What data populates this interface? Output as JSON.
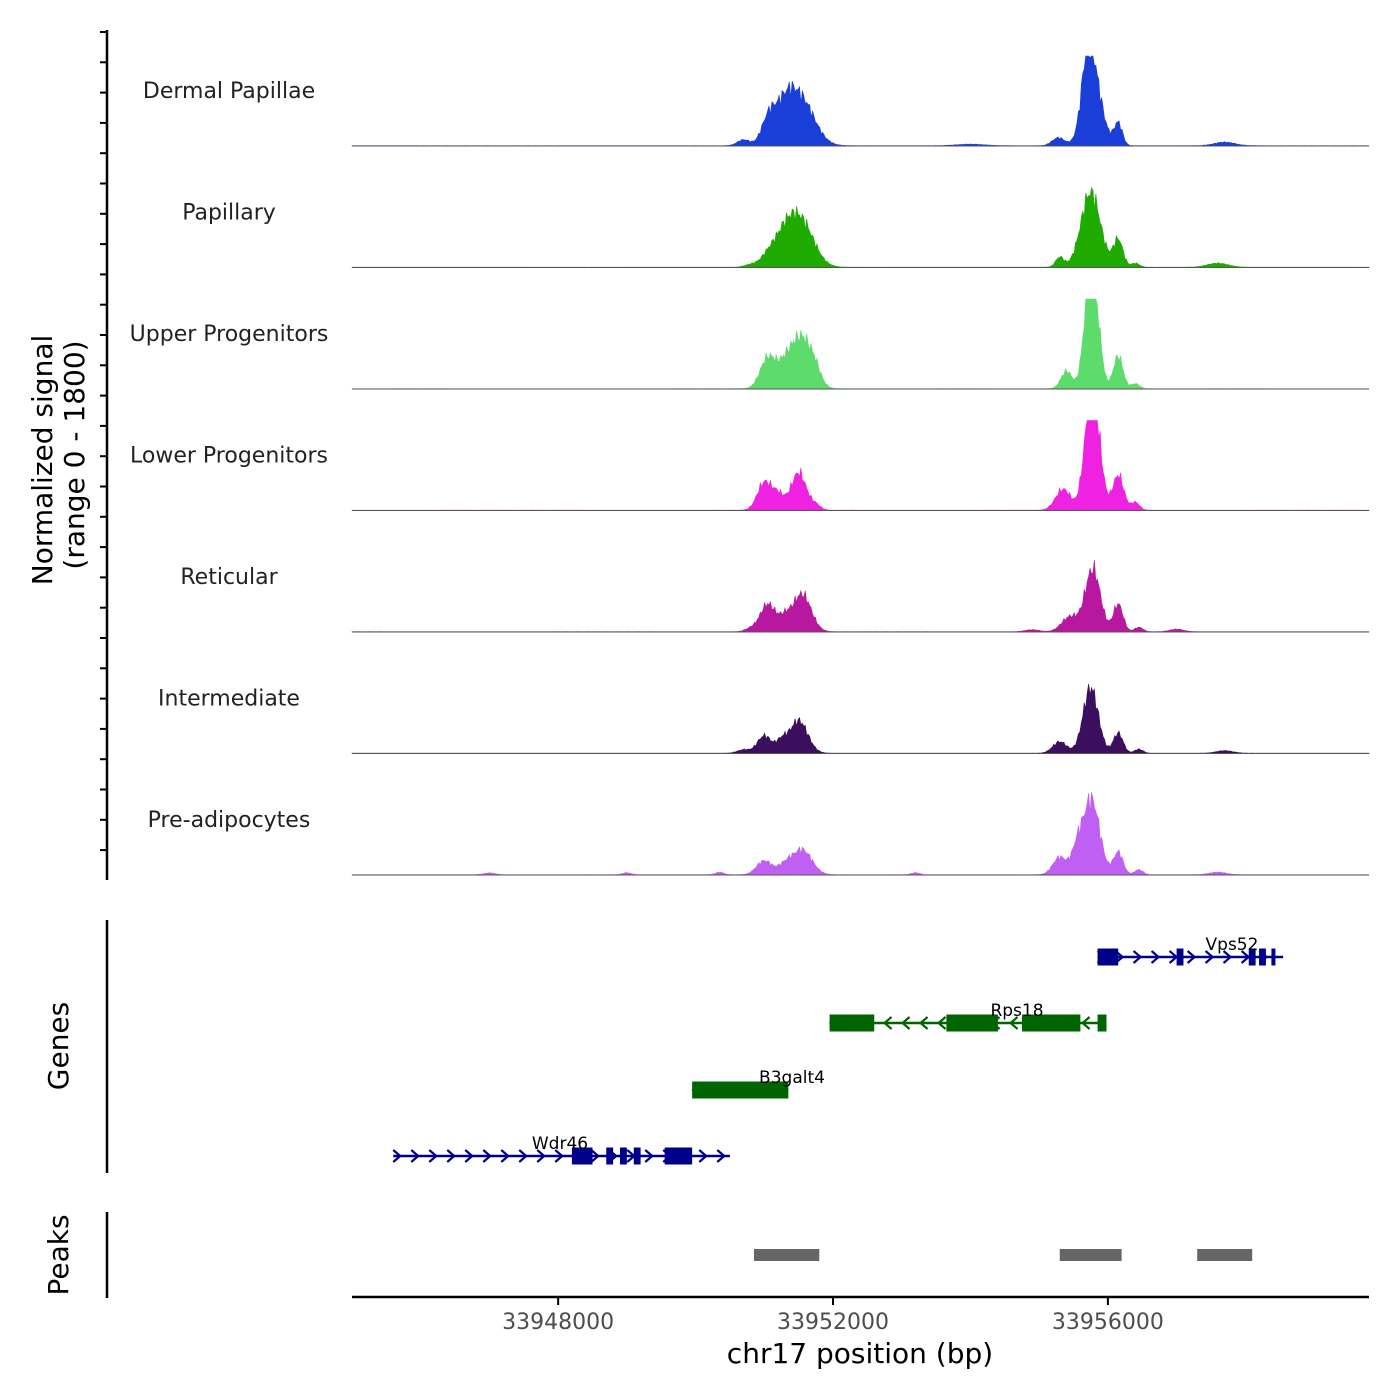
{
  "chart_data": {
    "type": "area",
    "title": "",
    "ylabel": "Normalized signal",
    "ylabel_range": "(range 0 - 1800)",
    "ylim": [
      0,
      1800
    ],
    "xlabel": "chr17 position (bp)",
    "xlim": [
      33945000,
      33959800
    ],
    "xticks": [
      33948000,
      33952000,
      33956000
    ],
    "xtick_labels": [
      "33948000",
      "33952000",
      "33956000"
    ],
    "signal_peaks_note": "approximate coverage bumps (center bp, width bp, height 0-1800)",
    "series": [
      {
        "name": "Dermal Papillae",
        "color": "#1a3fd9",
        "peaks": [
          [
            33951050,
            100,
            420
          ],
          [
            33951150,
            110,
            250
          ],
          [
            33951520,
            200,
            950
          ],
          [
            33951320,
            120,
            450
          ],
          [
            33950700,
            90,
            120
          ],
          [
            33955280,
            90,
            160
          ],
          [
            33955780,
            130,
            1400
          ],
          [
            33955700,
            80,
            900
          ],
          [
            33956150,
            60,
            450
          ],
          [
            33957700,
            150,
            70
          ],
          [
            33954000,
            200,
            30
          ]
        ]
      },
      {
        "name": "Papillary",
        "color": "#1faa00",
        "peaks": [
          [
            33951050,
            110,
            180
          ],
          [
            33951300,
            160,
            600
          ],
          [
            33951550,
            180,
            820
          ],
          [
            33950800,
            90,
            50
          ],
          [
            33955300,
            60,
            200
          ],
          [
            33955750,
            140,
            1500
          ],
          [
            33956150,
            70,
            550
          ],
          [
            33957600,
            150,
            80
          ],
          [
            33956400,
            60,
            80
          ]
        ]
      },
      {
        "name": "Upper Progenitors",
        "color": "#5ddc6d",
        "peaks": [
          [
            33951050,
            110,
            600
          ],
          [
            33951300,
            120,
            400
          ],
          [
            33951550,
            150,
            1000
          ],
          [
            33951750,
            80,
            180
          ],
          [
            33955400,
            80,
            350
          ],
          [
            33955720,
            80,
            1650
          ],
          [
            33955820,
            80,
            1300
          ],
          [
            33956150,
            70,
            650
          ],
          [
            33956400,
            60,
            100
          ]
        ]
      },
      {
        "name": "Lower Progenitors",
        "color": "#ee22e0",
        "peaks": [
          [
            33951000,
            100,
            550
          ],
          [
            33951200,
            90,
            300
          ],
          [
            33951500,
            110,
            750
          ],
          [
            33951750,
            70,
            100
          ],
          [
            33955350,
            110,
            420
          ],
          [
            33955730,
            90,
            1550
          ],
          [
            33955830,
            90,
            1250
          ],
          [
            33956150,
            80,
            700
          ],
          [
            33956400,
            60,
            160
          ]
        ]
      },
      {
        "name": "Reticular",
        "color": "#b8179f",
        "peaks": [
          [
            33951050,
            110,
            550
          ],
          [
            33951300,
            90,
            250
          ],
          [
            33951550,
            130,
            750
          ],
          [
            33950800,
            80,
            60
          ],
          [
            33955450,
            120,
            300
          ],
          [
            33955780,
            110,
            1250
          ],
          [
            33956150,
            70,
            550
          ],
          [
            33956450,
            60,
            90
          ],
          [
            33954900,
            100,
            40
          ],
          [
            33957000,
            100,
            50
          ]
        ]
      },
      {
        "name": "Intermediate",
        "color": "#3b0f5e",
        "peaks": [
          [
            33950700,
            90,
            70
          ],
          [
            33951000,
            100,
            350
          ],
          [
            33951250,
            80,
            220
          ],
          [
            33951500,
            130,
            650
          ],
          [
            33955300,
            100,
            230
          ],
          [
            33955750,
            110,
            1300
          ],
          [
            33956150,
            70,
            400
          ],
          [
            33956450,
            60,
            80
          ],
          [
            33957700,
            120,
            50
          ]
        ]
      },
      {
        "name": "Pre-adipocytes",
        "color": "#c060f3",
        "peaks": [
          [
            33951000,
            110,
            280
          ],
          [
            33951300,
            100,
            180
          ],
          [
            33951550,
            140,
            500
          ],
          [
            33950350,
            60,
            50
          ],
          [
            33949000,
            60,
            40
          ],
          [
            33947000,
            80,
            35
          ],
          [
            33955300,
            100,
            350
          ],
          [
            33955550,
            80,
            450
          ],
          [
            33955760,
            120,
            1500
          ],
          [
            33956150,
            70,
            450
          ],
          [
            33956450,
            60,
            100
          ],
          [
            33957600,
            120,
            50
          ],
          [
            33953200,
            60,
            40
          ]
        ]
      }
    ],
    "genes": [
      {
        "name": "Vps52",
        "strand": "+",
        "color": "#00008b",
        "start": 33955850,
        "end": 33958550,
        "row": 1,
        "exons": [
          [
            33955850,
            33956150
          ],
          [
            33957000,
            33957100
          ],
          [
            33958050,
            33958150
          ],
          [
            33958200,
            33958300
          ],
          [
            33958380,
            33958420
          ]
        ]
      },
      {
        "name": "Rps18",
        "strand": "-",
        "color": "#006400",
        "start": 33951950,
        "end": 33955980,
        "row": 2,
        "exons": [
          [
            33951950,
            33952600
          ],
          [
            33953650,
            33954400
          ],
          [
            33954750,
            33955600
          ],
          [
            33955850,
            33955980
          ]
        ]
      },
      {
        "name": "B3galt4",
        "strand": "-",
        "color": "#006400",
        "start": 33949950,
        "end": 33951350,
        "row": 3,
        "exons": [
          [
            33949950,
            33951350
          ]
        ]
      },
      {
        "name": "Wdr46",
        "strand": "+",
        "color": "#00008b",
        "start": 33945600,
        "end": 33950500,
        "row": 4,
        "exons": [
          [
            33948200,
            33948500
          ],
          [
            33948700,
            33948800
          ],
          [
            33948900,
            33949000
          ],
          [
            33949100,
            33949200
          ],
          [
            33949550,
            33949950
          ]
        ]
      }
    ],
    "peaks_track": [
      [
        33950850,
        33951800
      ],
      [
        33955300,
        33956200
      ],
      [
        33957300,
        33958100
      ]
    ],
    "panel_labels": {
      "genes": "Genes",
      "peaks": "Peaks"
    }
  }
}
